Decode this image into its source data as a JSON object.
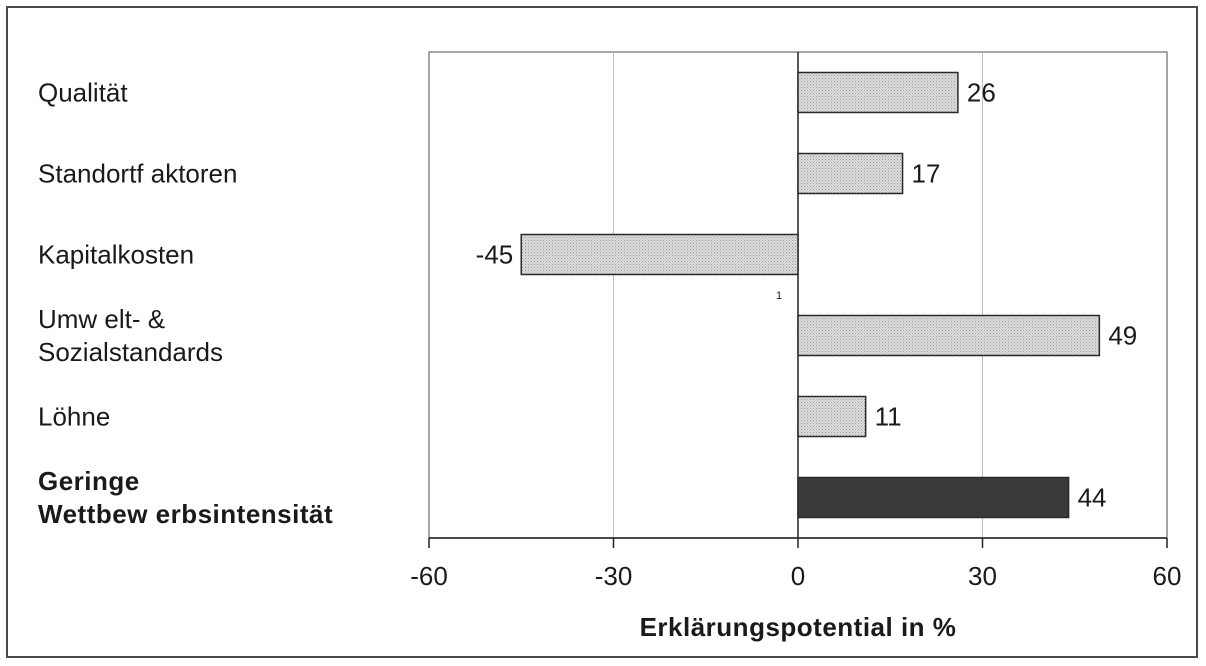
{
  "chart_data": {
    "type": "bar",
    "orientation": "horizontal",
    "categories": [
      "Qualität",
      "Standortf aktoren",
      "Kapitalkosten",
      "Umw elt- & Sozialstandards",
      "Löhne",
      "Geringe Wettbew erbsintensität"
    ],
    "category_lines": [
      [
        "Qualität"
      ],
      [
        "Standortf aktoren"
      ],
      [
        "Kapitalkosten"
      ],
      [
        "Umw elt- &",
        "Sozialstandards"
      ],
      [
        "Löhne"
      ],
      [
        "Geringe",
        "Wettbew erbsintensität"
      ]
    ],
    "values": [
      26,
      17,
      -45,
      49,
      11,
      44
    ],
    "highlight_index": 5,
    "xlabel": "Erklärungspotential in %",
    "ylabel": "",
    "xlim": [
      -60,
      60
    ],
    "xticks": [
      -60,
      -30,
      0,
      30,
      60
    ],
    "xtick_labels": [
      "-60",
      "-30",
      "0",
      "30",
      "60"
    ],
    "grid": "vertical",
    "legend": "none",
    "annotation": "1",
    "colors": {
      "bar_fill": "#d4d4d4",
      "bar_highlight": "#3a3a3a",
      "bar_stroke": "#2a2a2a",
      "grid": "#bdbdbd",
      "text": "#1a1a1a"
    }
  }
}
